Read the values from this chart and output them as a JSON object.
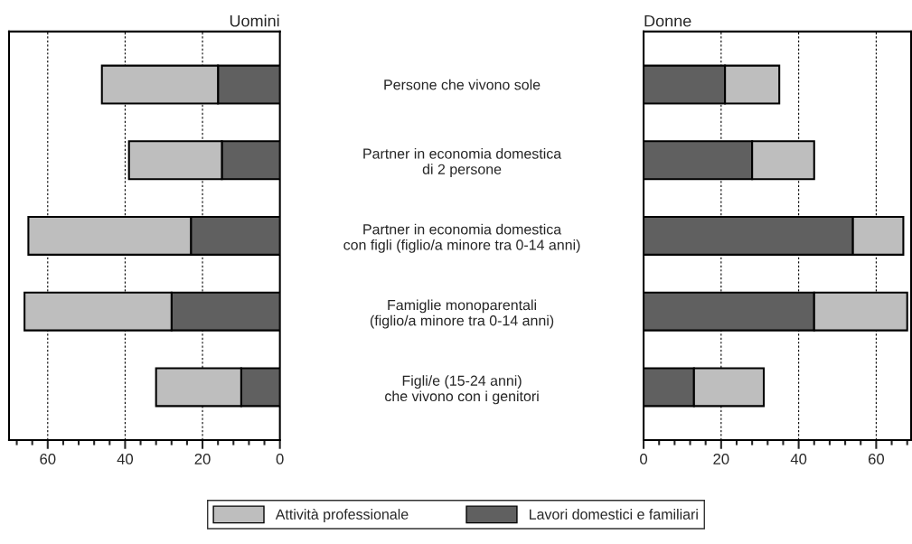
{
  "chart_data": [
    {
      "type": "bar",
      "orientation": "horizontal",
      "stacked": true,
      "title": "Uomini",
      "categories": [
        "Persone che vivono sole",
        "Partner in economia domestica\ndi 2 persone",
        "Partner in economia domestica\ncon figli (figlio/a minore tra 0-14 anni)",
        "Famiglie monoparentali\n(figlio/a minore tra 0-14 anni)",
        "Figli/e (15-24 anni)\nche vivono con i genitori"
      ],
      "series": [
        {
          "name": "Lavori domestici e familiari",
          "color": "#606060",
          "values": [
            16,
            15,
            23,
            28,
            10
          ]
        },
        {
          "name": "Attività professionale",
          "color": "#bebebe",
          "values": [
            30,
            24,
            42,
            38,
            22
          ]
        }
      ],
      "xlim": [
        70,
        0
      ],
      "xticks": [
        0,
        {
          "value": 4,
          "label": null
        },
        {
          "value": 8,
          "label": null
        },
        {
          "value": 12,
          "label": null
        },
        {
          "value": 16,
          "label": null
        },
        20,
        {
          "value": 24,
          "label": null
        },
        {
          "value": 28,
          "label": null
        },
        {
          "value": 32,
          "label": null
        },
        {
          "value": 36,
          "label": null
        },
        40,
        {
          "value": 44,
          "label": null
        },
        {
          "value": 48,
          "label": null
        },
        {
          "value": 52,
          "label": null
        },
        {
          "value": 56,
          "label": null
        },
        60,
        {
          "value": 64,
          "label": null
        },
        {
          "value": 68,
          "label": null
        }
      ],
      "grid": "x",
      "legend": "bottom"
    },
    {
      "type": "bar",
      "orientation": "horizontal",
      "stacked": true,
      "title": "Donne",
      "categories": [
        null,
        null,
        null,
        null,
        null
      ],
      "series": [
        {
          "color": "#606060",
          "values": [
            21,
            28,
            54,
            44,
            13
          ]
        },
        {
          "color": "#bebebe",
          "values": [
            14,
            16,
            13,
            24,
            18
          ]
        }
      ],
      "xlim": [
        0,
        69
      ],
      "xticks": [
        0,
        {
          "value": 4,
          "label": null
        },
        {
          "value": 8,
          "label": null
        },
        {
          "value": 12,
          "label": null
        },
        {
          "value": 16,
          "label": null
        },
        20,
        {
          "value": 24,
          "label": null
        },
        {
          "value": 28,
          "label": null
        },
        {
          "value": 32,
          "label": null
        },
        {
          "value": 36,
          "label": null
        },
        40,
        {
          "value": 44,
          "label": null
        },
        {
          "value": 48,
          "label": null
        },
        {
          "value": 52,
          "label": null
        },
        {
          "value": 56,
          "label": null
        },
        60,
        {
          "value": 64,
          "label": null
        },
        {
          "value": 68,
          "label": null
        }
      ],
      "grid": "x",
      "tick_labels": "x"
    }
  ]
}
